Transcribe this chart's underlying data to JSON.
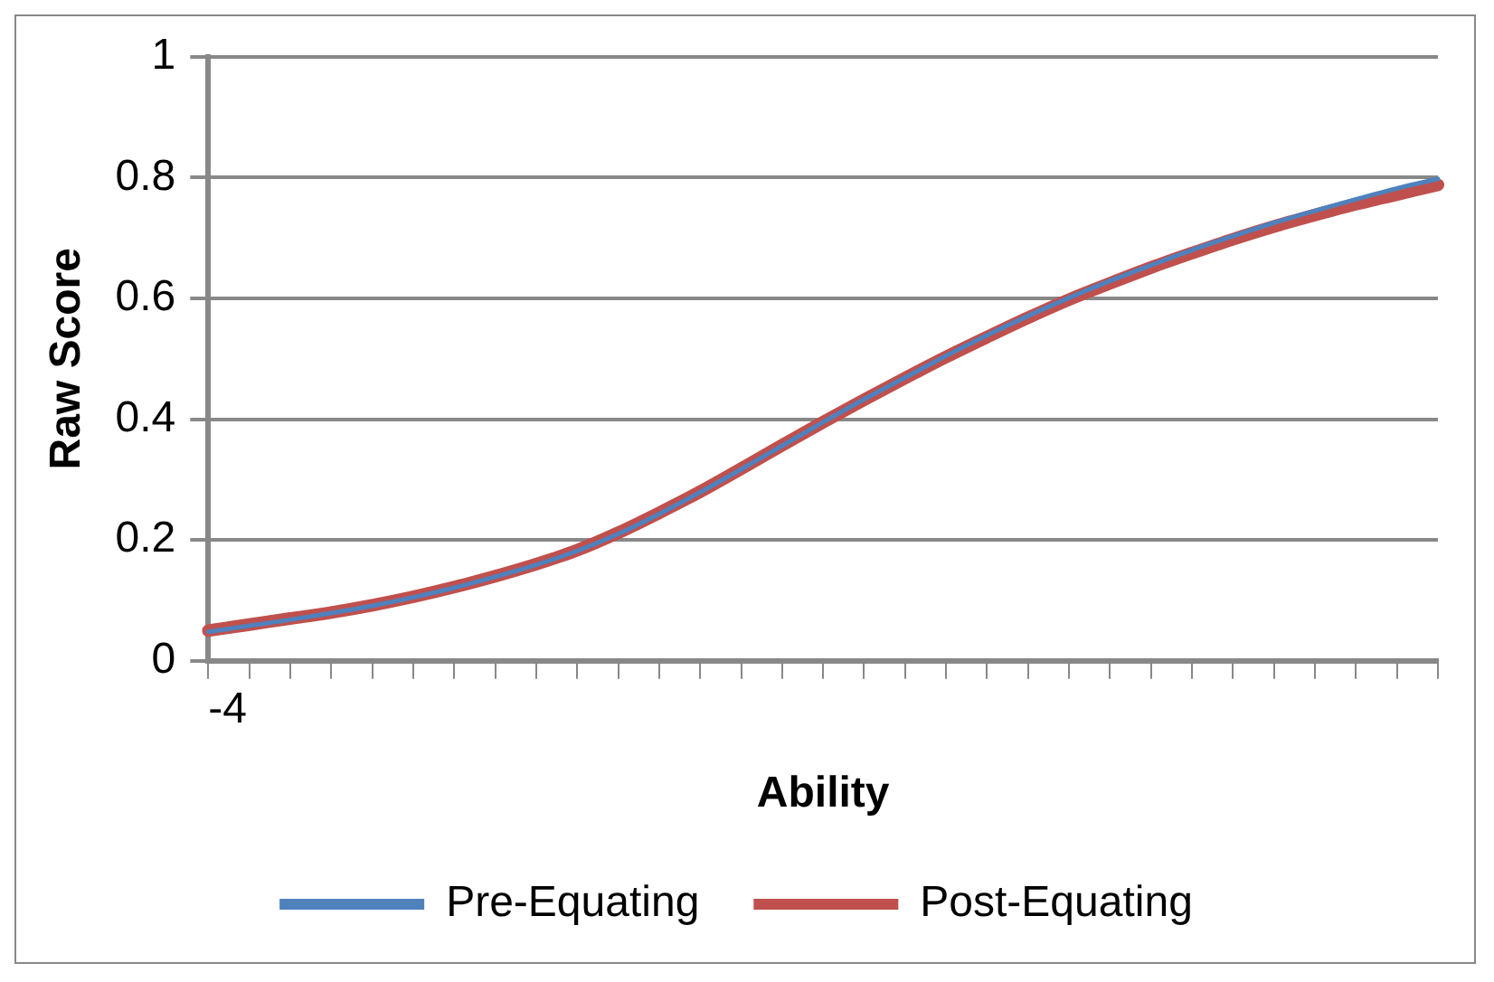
{
  "chart_data": {
    "type": "line",
    "xlabel": "Ability",
    "ylabel": "Raw Score",
    "categories": [
      "-4",
      null,
      null,
      null,
      null,
      null,
      null,
      null,
      null,
      null,
      null,
      null,
      null,
      null,
      null,
      null,
      null,
      null,
      null,
      null,
      null,
      null,
      null,
      null,
      null,
      null,
      null,
      null,
      null,
      null,
      null
    ],
    "series": [
      {
        "name": "Pre-Equating",
        "color": "#4f81bd",
        "values": [
          0.048,
          0.058,
          0.068,
          0.079,
          0.091,
          0.105,
          0.121,
          0.139,
          0.159,
          0.182,
          0.21,
          0.243,
          0.279,
          0.317,
          0.356,
          0.395,
          0.433,
          0.469,
          0.505,
          0.539,
          0.571,
          0.601,
          0.629,
          0.655,
          0.68,
          0.703,
          0.725,
          0.745,
          0.764,
          0.782,
          0.798
        ]
      },
      {
        "name": "Post-Equating",
        "color": "#c0504d",
        "values": [
          0.05,
          0.06,
          0.07,
          0.08,
          0.092,
          0.106,
          0.122,
          0.14,
          0.16,
          0.183,
          0.212,
          0.245,
          0.28,
          0.318,
          0.357,
          0.395,
          0.432,
          0.468,
          0.503,
          0.536,
          0.568,
          0.598,
          0.625,
          0.651,
          0.675,
          0.698,
          0.719,
          0.738,
          0.756,
          0.772,
          0.788
        ]
      }
    ],
    "ylim": [
      0,
      1
    ],
    "yticks": [
      0,
      0.2,
      0.4,
      0.6,
      0.8,
      1
    ],
    "grid": "y",
    "legend": "bottom",
    "marker": "none",
    "line_style": "solid"
  }
}
